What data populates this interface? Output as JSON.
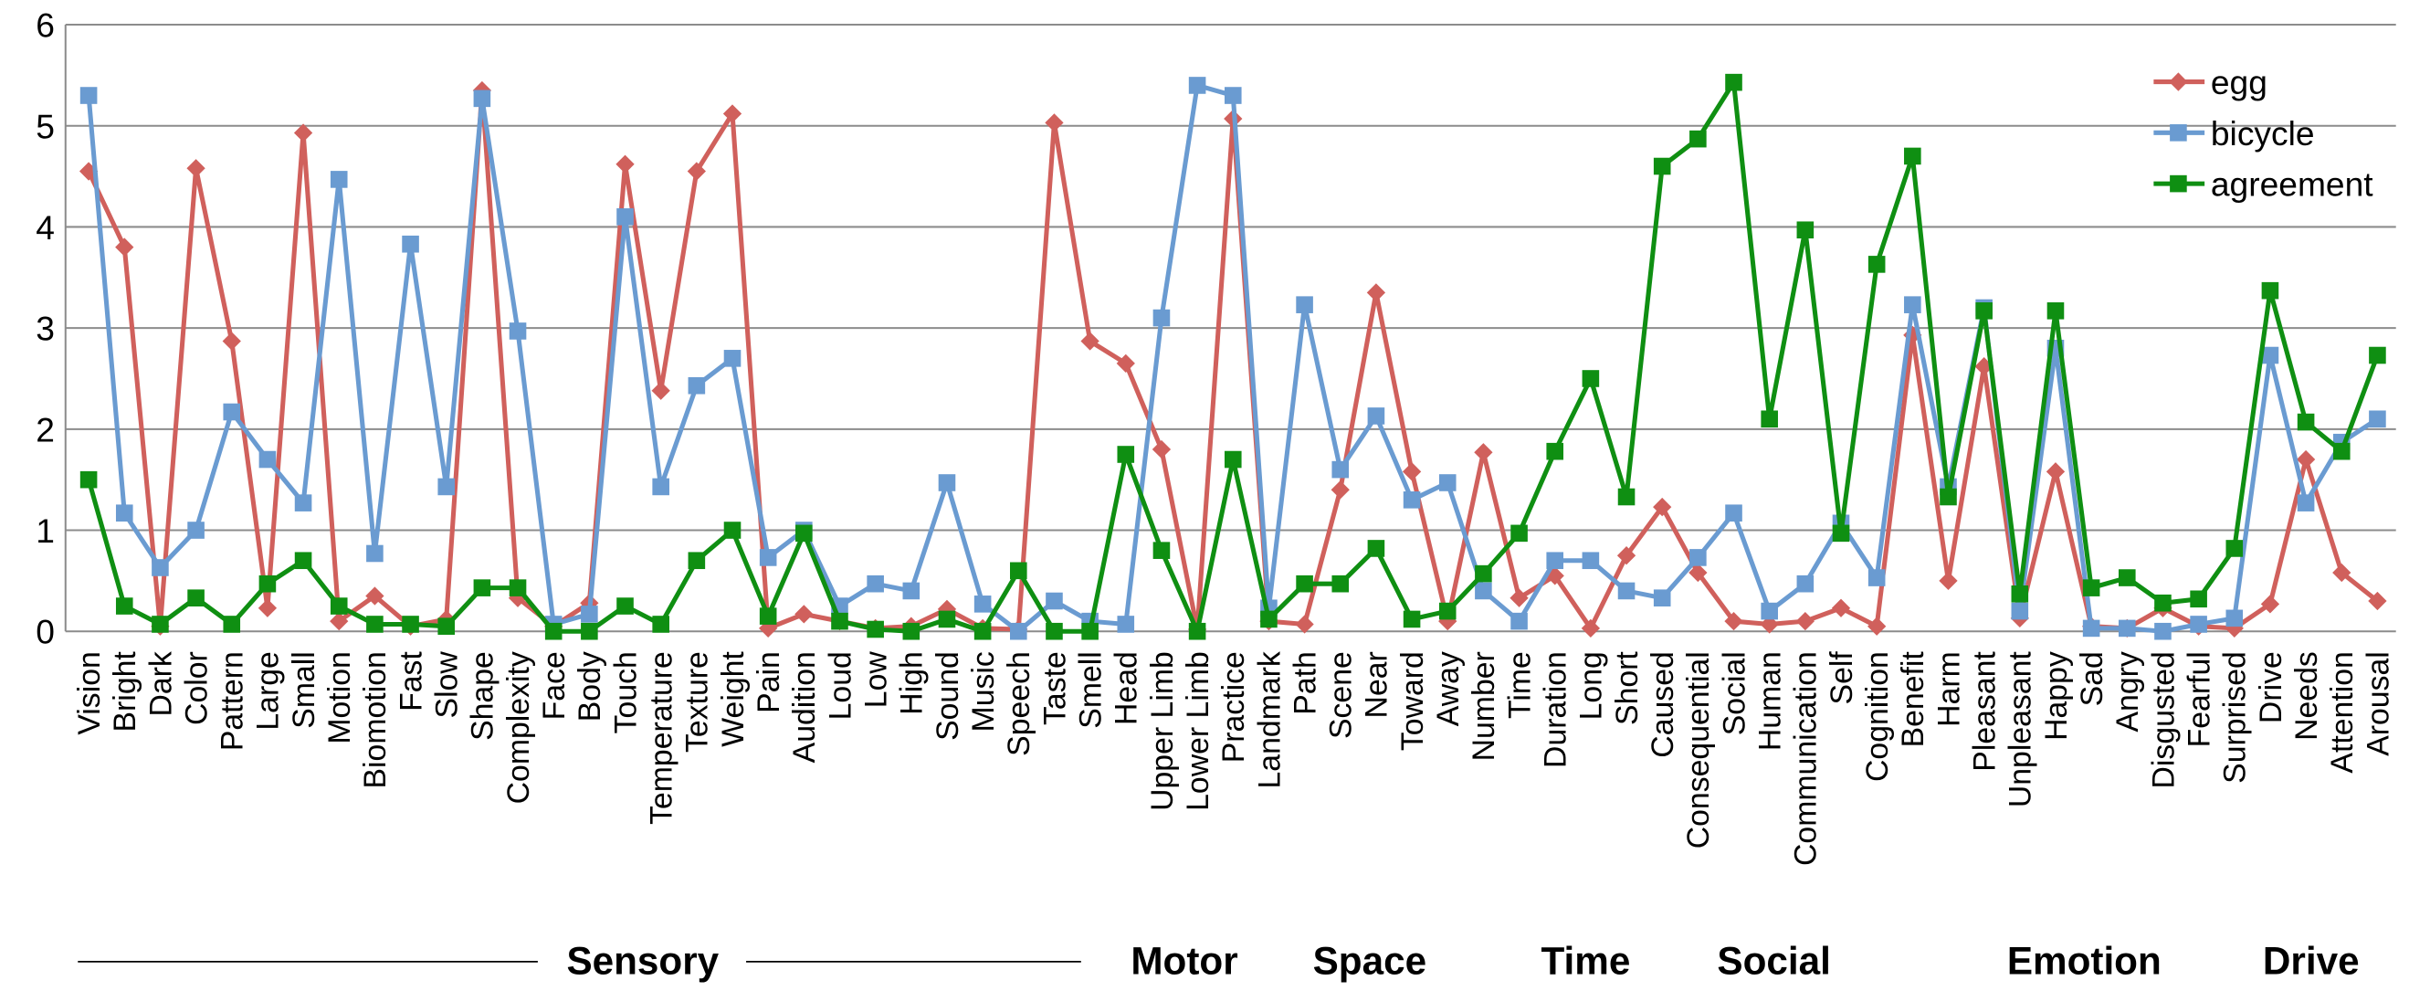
{
  "chart_data": {
    "type": "line",
    "categories": [
      "Vision",
      "Bright",
      "Dark",
      "Color",
      "Pattern",
      "Large",
      "Small",
      "Motion",
      "Biomotion",
      "Fast",
      "Slow",
      "Shape",
      "Complexity",
      "Face",
      "Body",
      "Touch",
      "Temperature",
      "Texture",
      "Weight",
      "Pain",
      "Audition",
      "Loud",
      "Low",
      "High",
      "Sound",
      "Music",
      "Speech",
      "Taste",
      "Smell",
      "Head",
      "Upper Limb",
      "Lower Limb",
      "Practice",
      "Landmark",
      "Path",
      "Scene",
      "Near",
      "Toward",
      "Away",
      "Number",
      "Time",
      "Duration",
      "Long",
      "Short",
      "Caused",
      "Consequential",
      "Social",
      "Human",
      "Communication",
      "Self",
      "Cognition",
      "Benefit",
      "Harm",
      "Pleasant",
      "Unpleasant",
      "Happy",
      "Sad",
      "Angry",
      "Disgusted",
      "Fearful",
      "Surprised",
      "Drive",
      "Needs",
      "Attention",
      "Arousal"
    ],
    "series": [
      {
        "name": "egg",
        "color": "#d0605c",
        "marker": "diamond",
        "values": [
          4.55,
          3.8,
          0.05,
          4.58,
          2.87,
          0.23,
          4.93,
          0.1,
          0.35,
          0.05,
          0.12,
          5.35,
          0.33,
          0.05,
          0.28,
          4.62,
          2.38,
          4.55,
          5.12,
          0.03,
          0.17,
          0.1,
          0.03,
          0.05,
          0.22,
          0.03,
          0.02,
          5.03,
          2.87,
          2.65,
          1.8,
          0.02,
          5.07,
          0.1,
          0.07,
          1.4,
          3.35,
          1.58,
          0.1,
          1.77,
          0.33,
          0.55,
          0.03,
          0.75,
          1.23,
          0.58,
          0.1,
          0.07,
          0.1,
          0.23,
          0.05,
          2.93,
          0.5,
          2.62,
          0.13,
          1.58,
          0.05,
          0.03,
          0.23,
          0.05,
          0.03,
          0.27,
          1.7,
          0.58,
          0.3
        ]
      },
      {
        "name": "bicycle",
        "color": "#6a9bd1",
        "marker": "square",
        "values": [
          5.3,
          1.17,
          0.63,
          1.0,
          2.17,
          1.7,
          1.27,
          4.47,
          0.77,
          3.83,
          1.43,
          5.27,
          2.97,
          0.07,
          0.17,
          4.1,
          1.43,
          2.43,
          2.7,
          0.73,
          1.0,
          0.25,
          0.47,
          0.4,
          1.47,
          0.27,
          0.0,
          0.3,
          0.1,
          0.07,
          3.1,
          5.4,
          5.3,
          0.23,
          3.23,
          1.6,
          2.13,
          1.3,
          1.47,
          0.4,
          0.1,
          0.7,
          0.7,
          0.4,
          0.33,
          0.73,
          1.17,
          0.2,
          0.47,
          1.07,
          0.53,
          3.23,
          1.43,
          3.2,
          0.2,
          2.8,
          0.03,
          0.03,
          0.0,
          0.07,
          0.13,
          2.73,
          1.27,
          1.87,
          2.1
        ]
      },
      {
        "name": "agreement",
        "color": "#0f8f12",
        "marker": "square",
        "values": [
          1.5,
          0.25,
          0.07,
          0.33,
          0.07,
          0.47,
          0.7,
          0.25,
          0.07,
          0.07,
          0.05,
          0.43,
          0.43,
          0.0,
          0.0,
          0.25,
          0.07,
          0.7,
          1.0,
          0.15,
          0.97,
          0.1,
          0.02,
          0.0,
          0.12,
          0.0,
          0.6,
          0.0,
          0.0,
          1.75,
          0.8,
          0.0,
          1.7,
          0.12,
          0.47,
          0.47,
          0.82,
          0.12,
          0.2,
          0.57,
          0.97,
          1.78,
          2.5,
          1.33,
          4.6,
          4.87,
          5.43,
          2.1,
          3.97,
          0.97,
          3.63,
          4.7,
          1.33,
          3.17,
          0.37,
          3.17,
          0.43,
          0.53,
          0.28,
          0.32,
          0.82,
          3.37,
          2.07,
          1.78,
          2.73
        ]
      }
    ],
    "ylim": [
      0,
      6
    ],
    "yticks": [
      0,
      1,
      2,
      3,
      4,
      5,
      6
    ],
    "grid": true,
    "legend": "top-right",
    "groups": [
      "Sensory",
      "Motor",
      "Space",
      "Time",
      "Social",
      "Emotion",
      "Drive"
    ]
  }
}
